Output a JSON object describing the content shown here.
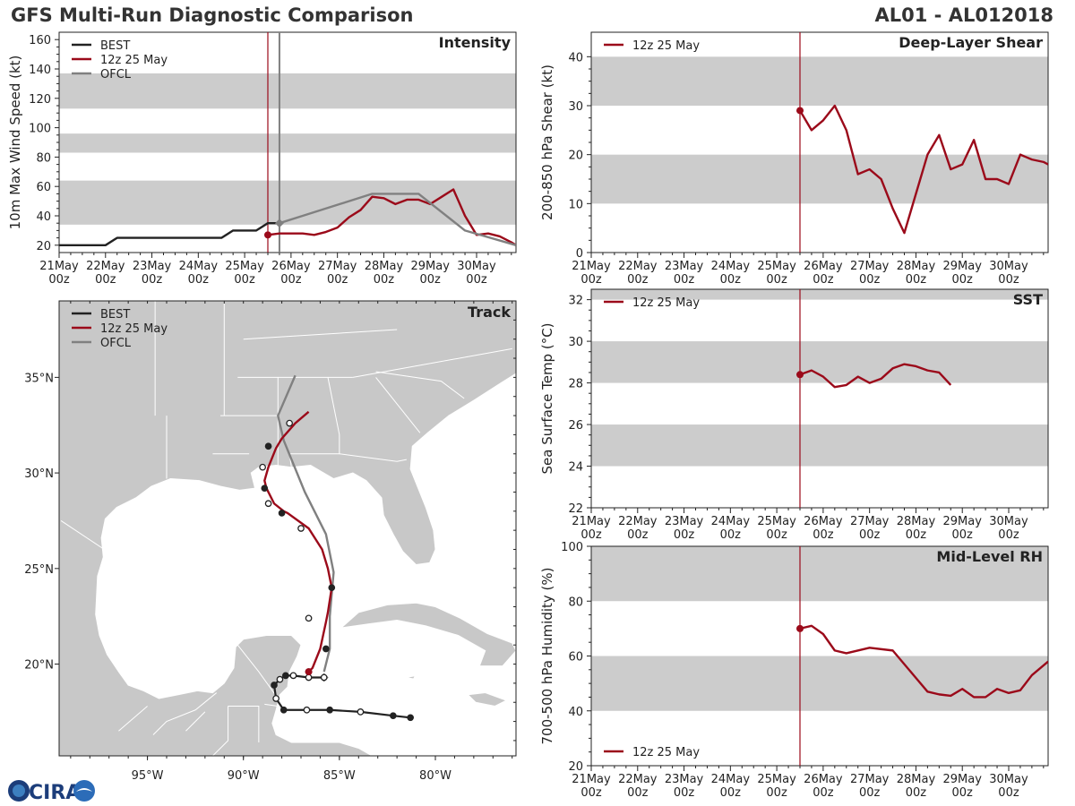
{
  "header": {
    "title": "GFS Multi-Run Diagnostic Comparison",
    "storm_id": "AL01 - AL012018"
  },
  "logo": {
    "text": "CIRA"
  },
  "colors": {
    "best": "#222222",
    "run": "#9b0a1a",
    "ofcl": "#808080",
    "band": "#cccccc",
    "land": "#c8c8c8",
    "ocean": "#ffffff"
  },
  "time_axis": {
    "tick_labels": [
      [
        "21May",
        "00z"
      ],
      [
        "22May",
        "00z"
      ],
      [
        "23May",
        "00z"
      ],
      [
        "24May",
        "00z"
      ],
      [
        "25May",
        "00z"
      ],
      [
        "26May",
        "00z"
      ],
      [
        "27May",
        "00z"
      ],
      [
        "28May",
        "00z"
      ],
      [
        "29May",
        "00z"
      ],
      [
        "30May",
        "00z"
      ]
    ],
    "range_days": [
      0,
      9.85
    ],
    "init_day": 4.5,
    "ofcl_line_day": 4.75
  },
  "chart_data": [
    {
      "id": "intensity",
      "type": "line",
      "title": "Intensity",
      "ylabel": "10m Max Wind Speed (kt)",
      "ylim": [
        15,
        165
      ],
      "yticks": [
        20,
        40,
        60,
        80,
        100,
        120,
        140,
        160
      ],
      "bands": [
        [
          34,
          64
        ],
        [
          83,
          96
        ],
        [
          113,
          137
        ]
      ],
      "legend": [
        "BEST",
        "12z 25 May",
        "OFCL"
      ],
      "series": [
        {
          "name": "BEST",
          "x": [
            0,
            1,
            1.25,
            2,
            3,
            3.5,
            3.75,
            4,
            4.25,
            4.5,
            4.75
          ],
          "y": [
            20,
            20,
            25,
            25,
            25,
            25,
            30,
            30,
            30,
            35,
            35
          ]
        },
        {
          "name": "12z 25 May",
          "x": [
            4.5,
            4.75,
            5,
            5.25,
            5.5,
            5.75,
            6,
            6.25,
            6.5,
            6.75,
            7,
            7.25,
            7.5,
            7.75,
            8,
            8.25,
            8.5,
            8.75,
            9,
            9.25,
            9.5,
            9.75,
            9.85
          ],
          "y": [
            27,
            28,
            28,
            28,
            27,
            29,
            32,
            39,
            44,
            53,
            52,
            48,
            51,
            51,
            48,
            53,
            58,
            40,
            27,
            28,
            26,
            22,
            20
          ]
        },
        {
          "name": "OFCL",
          "x": [
            4.75,
            5.25,
            6.75,
            7.75,
            8.75,
            9.85
          ],
          "y": [
            35,
            40,
            55,
            55,
            30,
            20
          ]
        }
      ]
    },
    {
      "id": "shear",
      "type": "line",
      "title": "Deep-Layer Shear",
      "ylabel": "200-850 hPa Shear (kt)",
      "ylim": [
        0,
        45
      ],
      "yticks": [
        0,
        10,
        20,
        30,
        40
      ],
      "bands": [
        [
          10,
          20
        ],
        [
          30,
          40
        ]
      ],
      "legend": [
        "12z 25 May"
      ],
      "series": [
        {
          "name": "12z 25 May",
          "x": [
            4.5,
            4.75,
            5,
            5.25,
            5.5,
            5.75,
            6,
            6.25,
            6.5,
            6.75,
            7,
            7.25,
            7.5,
            7.75,
            8,
            8.25,
            8.5,
            8.75,
            9,
            9.25,
            9.5,
            9.75,
            9.85
          ],
          "y": [
            29,
            25,
            27,
            30,
            25,
            16,
            17,
            15,
            9,
            4,
            12,
            20,
            24,
            17,
            18,
            23,
            15,
            15,
            14,
            20,
            19,
            18.5,
            18
          ]
        }
      ]
    },
    {
      "id": "sst",
      "type": "line",
      "title": "SST",
      "ylabel": "Sea Surface Temp (°C)",
      "ylim": [
        22,
        32.5
      ],
      "yticks": [
        22,
        24,
        26,
        28,
        30,
        32
      ],
      "bands": [
        [
          24,
          26
        ],
        [
          28,
          30
        ],
        [
          32,
          32.5
        ]
      ],
      "legend": [
        "12z 25 May"
      ],
      "series": [
        {
          "name": "12z 25 May",
          "x": [
            4.5,
            4.75,
            5,
            5.25,
            5.5,
            5.75,
            6,
            6.25,
            6.5,
            6.75,
            7,
            7.25,
            7.5,
            7.75
          ],
          "y": [
            28.4,
            28.6,
            28.3,
            27.8,
            27.9,
            28.3,
            28.0,
            28.2,
            28.7,
            28.9,
            28.8,
            28.6,
            28.5,
            27.9
          ]
        }
      ]
    },
    {
      "id": "rh",
      "type": "line",
      "title": "Mid-Level RH",
      "ylabel": "700-500 hPa Humidity (%)",
      "ylim": [
        20,
        100
      ],
      "yticks": [
        20,
        40,
        60,
        80,
        100
      ],
      "bands": [
        [
          40,
          60
        ],
        [
          80,
          100
        ]
      ],
      "legend": [
        "12z 25 May"
      ],
      "series": [
        {
          "name": "12z 25 May",
          "x": [
            4.5,
            4.75,
            5,
            5.25,
            5.5,
            6,
            6.5,
            7,
            7.25,
            7.5,
            7.75,
            8,
            8.25,
            8.5,
            8.75,
            9,
            9.25,
            9.5,
            9.85
          ],
          "y": [
            70,
            71,
            68,
            62,
            61,
            63,
            62,
            52,
            47,
            46,
            45.5,
            48,
            45,
            45,
            48,
            46.5,
            47.5,
            53,
            58
          ]
        }
      ]
    },
    {
      "id": "track",
      "type": "scatter",
      "title": "Track",
      "lon_range": [
        -99.6,
        -75.8
      ],
      "lat_range": [
        15.2,
        39.0
      ],
      "x_ticks": [
        -95,
        -90,
        -85,
        -80
      ],
      "x_tick_labels": [
        "95°W",
        "90°W",
        "85°W",
        "80°W"
      ],
      "y_ticks": [
        20,
        25,
        30,
        35
      ],
      "y_tick_labels": [
        "20°N",
        "25°N",
        "30°N",
        "35°N"
      ],
      "legend": [
        "BEST",
        "12z 25 May",
        "OFCL"
      ],
      "best": {
        "lon": [
          -81.3,
          -82.2,
          -83.9,
          -85.5,
          -86.7,
          -87.9,
          -88.3,
          -88.4,
          -88.1,
          -87.8,
          -87.4,
          -86.6,
          -85.8
        ],
        "lat": [
          17.2,
          17.3,
          17.5,
          17.6,
          17.6,
          17.6,
          18.2,
          18.9,
          19.2,
          19.4,
          19.4,
          19.3,
          19.3
        ],
        "filled": [
          true,
          true,
          false,
          true,
          false,
          true,
          false,
          true,
          false,
          true,
          false,
          false,
          false
        ]
      },
      "run": {
        "lon": [
          -86.6,
          -86.4,
          -86.0,
          -85.7,
          -85.6,
          -85.4,
          -85.6,
          -85.9,
          -86.6,
          -87.7,
          -87.9,
          -88.4,
          -88.8,
          -88.9,
          -88.7,
          -88.3,
          -88.0,
          -87.3,
          -86.6
        ],
        "lat": [
          19.6,
          19.8,
          20.8,
          22.2,
          22.7,
          24.0,
          25.0,
          26.0,
          27.1,
          27.9,
          28.0,
          28.4,
          29.2,
          29.6,
          30.3,
          31.3,
          31.8,
          32.6,
          33.2
        ],
        "filled": [
          true,
          false,
          false,
          false,
          false,
          true,
          false,
          false,
          false,
          false,
          true,
          false,
          true,
          false,
          false,
          true,
          false,
          true,
          false
        ],
        "markers": [
          [
            -86.6,
            19.6,
            true
          ],
          [
            -85.7,
            20.8,
            true
          ],
          [
            -86.6,
            22.4,
            false
          ],
          [
            -85.4,
            24.0,
            true
          ],
          [
            -87.0,
            27.1,
            false
          ],
          [
            -88.0,
            27.9,
            true
          ],
          [
            -88.7,
            28.4,
            false
          ],
          [
            -88.9,
            29.2,
            true
          ],
          [
            -89.0,
            30.3,
            false
          ],
          [
            -88.7,
            31.4,
            true
          ],
          [
            -87.6,
            32.6,
            false
          ]
        ]
      },
      "ofcl": {
        "lon": [
          -85.8,
          -85.5,
          -85.5,
          -85.3,
          -85.7,
          -86.8,
          -87.9,
          -88.2,
          -87.3
        ],
        "lat": [
          19.6,
          20.8,
          22.5,
          24.8,
          26.8,
          29.0,
          31.7,
          33.0,
          35.1
        ]
      }
    }
  ]
}
